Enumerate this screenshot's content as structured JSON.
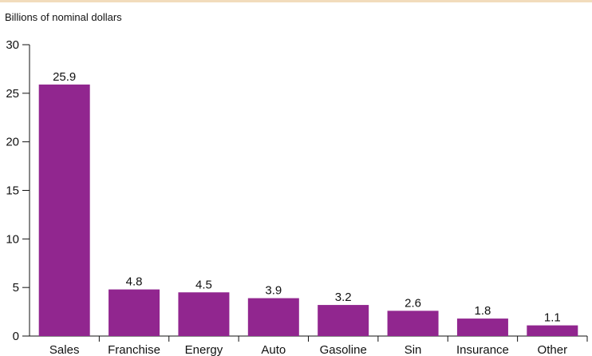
{
  "chart_data": {
    "type": "bar",
    "ylabel": "Billions of nominal dollars",
    "categories": [
      "Sales",
      "Franchise",
      "Energy",
      "Auto",
      "Gasoline",
      "Sin",
      "Insurance",
      "Other"
    ],
    "values": [
      25.9,
      4.8,
      4.5,
      3.9,
      3.2,
      2.6,
      1.8,
      1.1
    ],
    "value_labels": [
      "25.9",
      "4.8",
      "4.5",
      "3.9",
      "3.2",
      "2.6",
      "1.8",
      "1.1"
    ],
    "ylim": [
      0,
      30
    ],
    "yticks": [
      0,
      5,
      10,
      15,
      20,
      25,
      30
    ],
    "ytick_labels": [
      "0",
      "5",
      "10",
      "15",
      "20",
      "25",
      "30"
    ],
    "grid": false,
    "legend": "none",
    "bar_color": "#91268f"
  }
}
